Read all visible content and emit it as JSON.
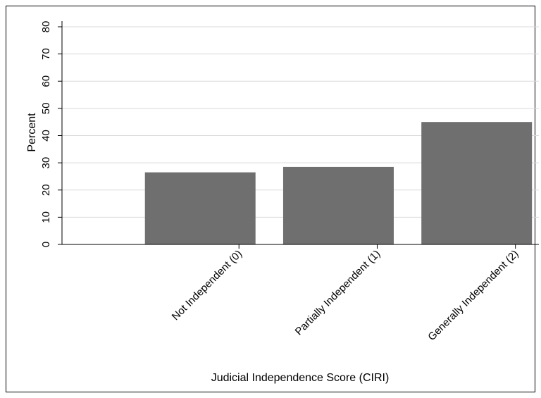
{
  "chart_data": {
    "type": "bar",
    "categories": [
      "Not Independent (0)",
      "Partially Independent (1)",
      "Generally Independent (2)"
    ],
    "values": [
      26.5,
      28.5,
      45
    ],
    "xlabel": "Judicial Independence Score (CIRI)",
    "ylabel": "Percent",
    "ylim": [
      0,
      80
    ],
    "yticks": [
      0,
      10,
      20,
      30,
      40,
      50,
      60,
      70,
      80
    ],
    "grid": true,
    "bar_color": "#6f6f6f",
    "grid_color": "#d9d9d9"
  }
}
